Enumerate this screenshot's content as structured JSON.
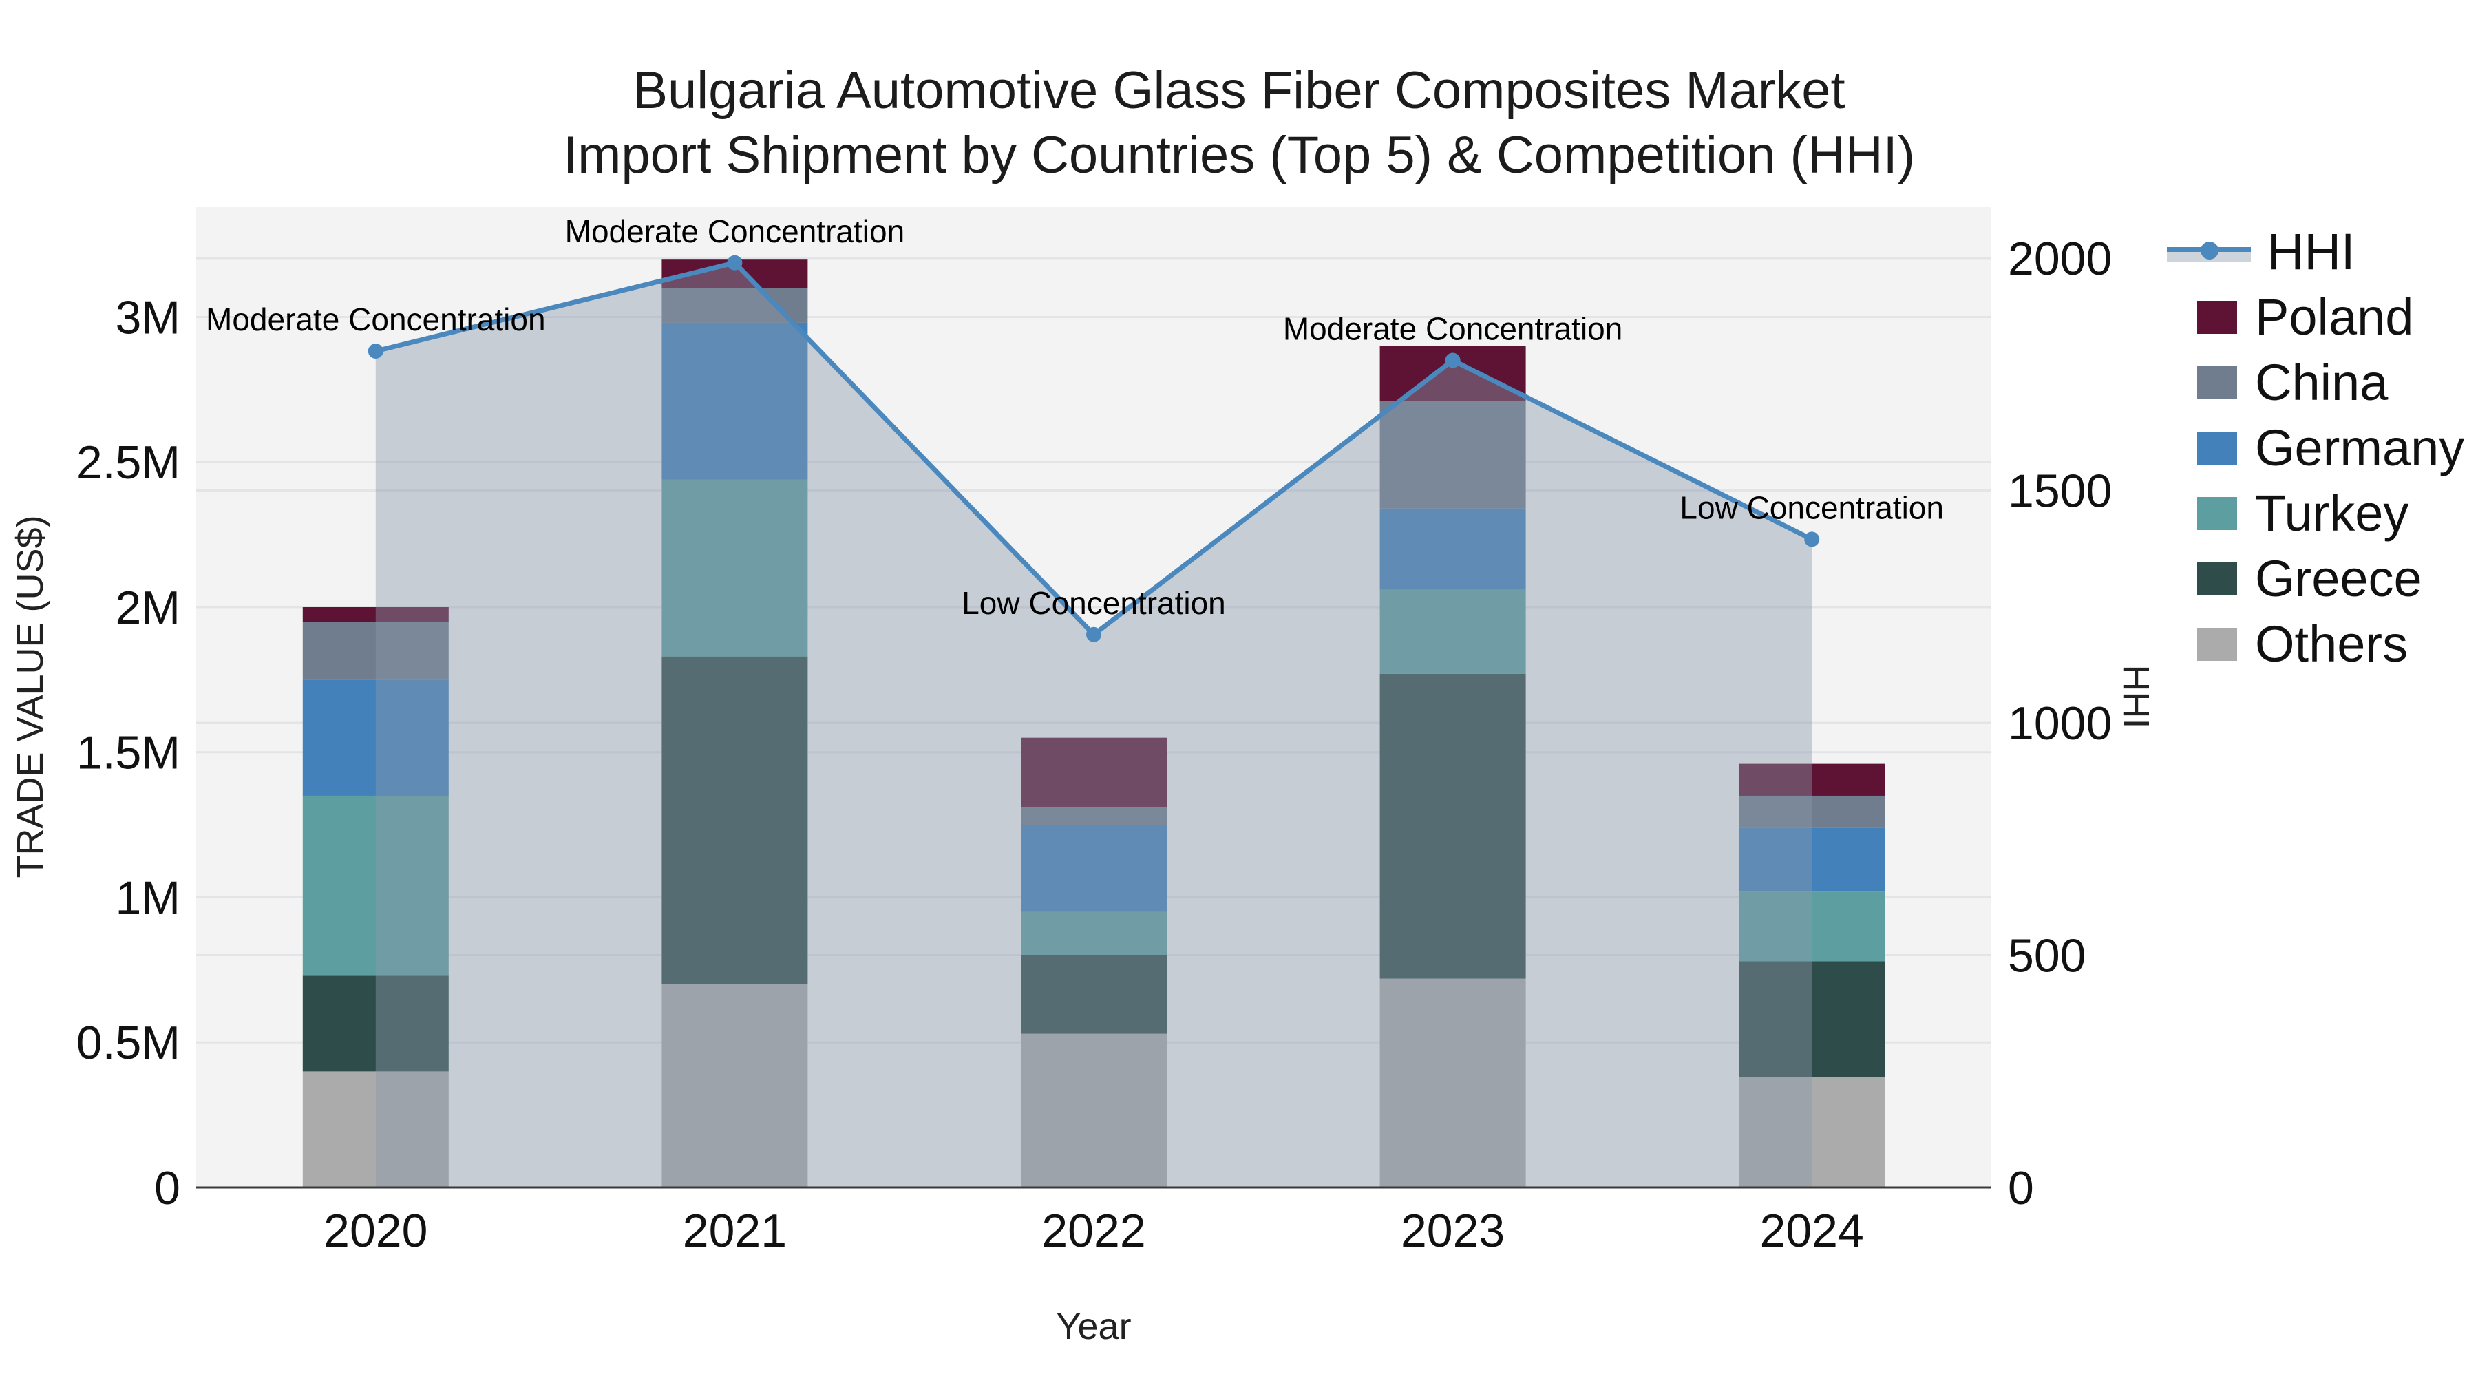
{
  "title": {
    "line1": "Bulgaria Automotive Glass Fiber Composites Market",
    "line2": "Import Shipment by Countries (Top 5) & Competition (HHI)"
  },
  "axes": {
    "left": {
      "title": "TRADE VALUE (US$)",
      "ticks": [
        {
          "value": 0,
          "label": "0"
        },
        {
          "value": 0.5,
          "label": "0.5M"
        },
        {
          "value": 1,
          "label": "1M"
        },
        {
          "value": 1.5,
          "label": "1.5M"
        },
        {
          "value": 2,
          "label": "2M"
        },
        {
          "value": 2.5,
          "label": "2.5M"
        },
        {
          "value": 3,
          "label": "3M"
        }
      ]
    },
    "right": {
      "title": "HHI",
      "ticks": [
        {
          "value": 0,
          "label": "0"
        },
        {
          "value": 500,
          "label": "500"
        },
        {
          "value": 1000,
          "label": "1000"
        },
        {
          "value": 1500,
          "label": "1500"
        },
        {
          "value": 2000,
          "label": "2000"
        }
      ]
    },
    "x": {
      "title": "Year"
    }
  },
  "legend": [
    {
      "label": "HHI",
      "type": "line",
      "color": "#4b88bd"
    },
    {
      "label": "Poland",
      "type": "swatch",
      "color": "#5e1335"
    },
    {
      "label": "China",
      "type": "swatch",
      "color": "#6f7d8e"
    },
    {
      "label": "Germany",
      "type": "swatch",
      "color": "#4381bb"
    },
    {
      "label": "Turkey",
      "type": "swatch",
      "color": "#5d9fa0"
    },
    {
      "label": "Greece",
      "type": "swatch",
      "color": "#2e4c49"
    },
    {
      "label": "Others",
      "type": "swatch",
      "color": "#ababab"
    }
  ],
  "chart_data": {
    "type": "bar",
    "subtype": "stacked-bars-with-line-overlay",
    "categories": [
      "2020",
      "2021",
      "2022",
      "2023",
      "2024"
    ],
    "bar_unit": "million US$",
    "series": [
      {
        "name": "Poland",
        "color": "#5e1335",
        "values": [
          0.05,
          0.1,
          0.24,
          0.19,
          0.11
        ]
      },
      {
        "name": "China",
        "color": "#6f7d8e",
        "values": [
          0.2,
          0.12,
          0.06,
          0.37,
          0.11
        ]
      },
      {
        "name": "Germany",
        "color": "#4381bb",
        "values": [
          0.4,
          0.54,
          0.3,
          0.28,
          0.22
        ]
      },
      {
        "name": "Turkey",
        "color": "#5d9fa0",
        "values": [
          0.62,
          0.61,
          0.15,
          0.29,
          0.24
        ]
      },
      {
        "name": "Greece",
        "color": "#2e4c49",
        "values": [
          0.33,
          1.13,
          0.27,
          1.05,
          0.4
        ]
      },
      {
        "name": "Others",
        "color": "#ababab",
        "values": [
          0.4,
          0.7,
          0.53,
          0.72,
          0.38
        ]
      }
    ],
    "stack_order_bottom_to_top": [
      "Others",
      "Greece",
      "Turkey",
      "Germany",
      "China",
      "Poland"
    ],
    "bar_totals": [
      2.0,
      3.2,
      1.55,
      2.9,
      1.46
    ],
    "line_series": {
      "name": "HHI",
      "axis": "right",
      "color": "#4b88bd",
      "values": [
        1800,
        1990,
        1190,
        1780,
        1395
      ]
    },
    "annotations": [
      "Moderate Concentration",
      "Moderate Concentration",
      "Low Concentration",
      "Moderate Concentration",
      "Low Concentration"
    ],
    "title": "Bulgaria Automotive Glass Fiber Composites Market Import Shipment by Countries (Top 5) & Competition (HHI)",
    "xlabel": "Year",
    "ylabel": "TRADE VALUE (US$)",
    "ylabel_right": "HHI",
    "ylim_left": [
      0,
      3.38
    ],
    "ylim_right": [
      0,
      2110
    ],
    "grid": true,
    "legend_position": "right"
  },
  "colors": {
    "hhi_line": "#4b88bd",
    "hhi_area_fill": "rgba(138,152,172,0.42)",
    "plot_bg": "#f2f3f2",
    "page_bg": "#ffffff",
    "gridline": "#e3e4e8",
    "axis_line": "#3a3a3a",
    "legend_band": "#ced4dc",
    "tick_text": "#111111",
    "annotation_text": "#000000"
  }
}
